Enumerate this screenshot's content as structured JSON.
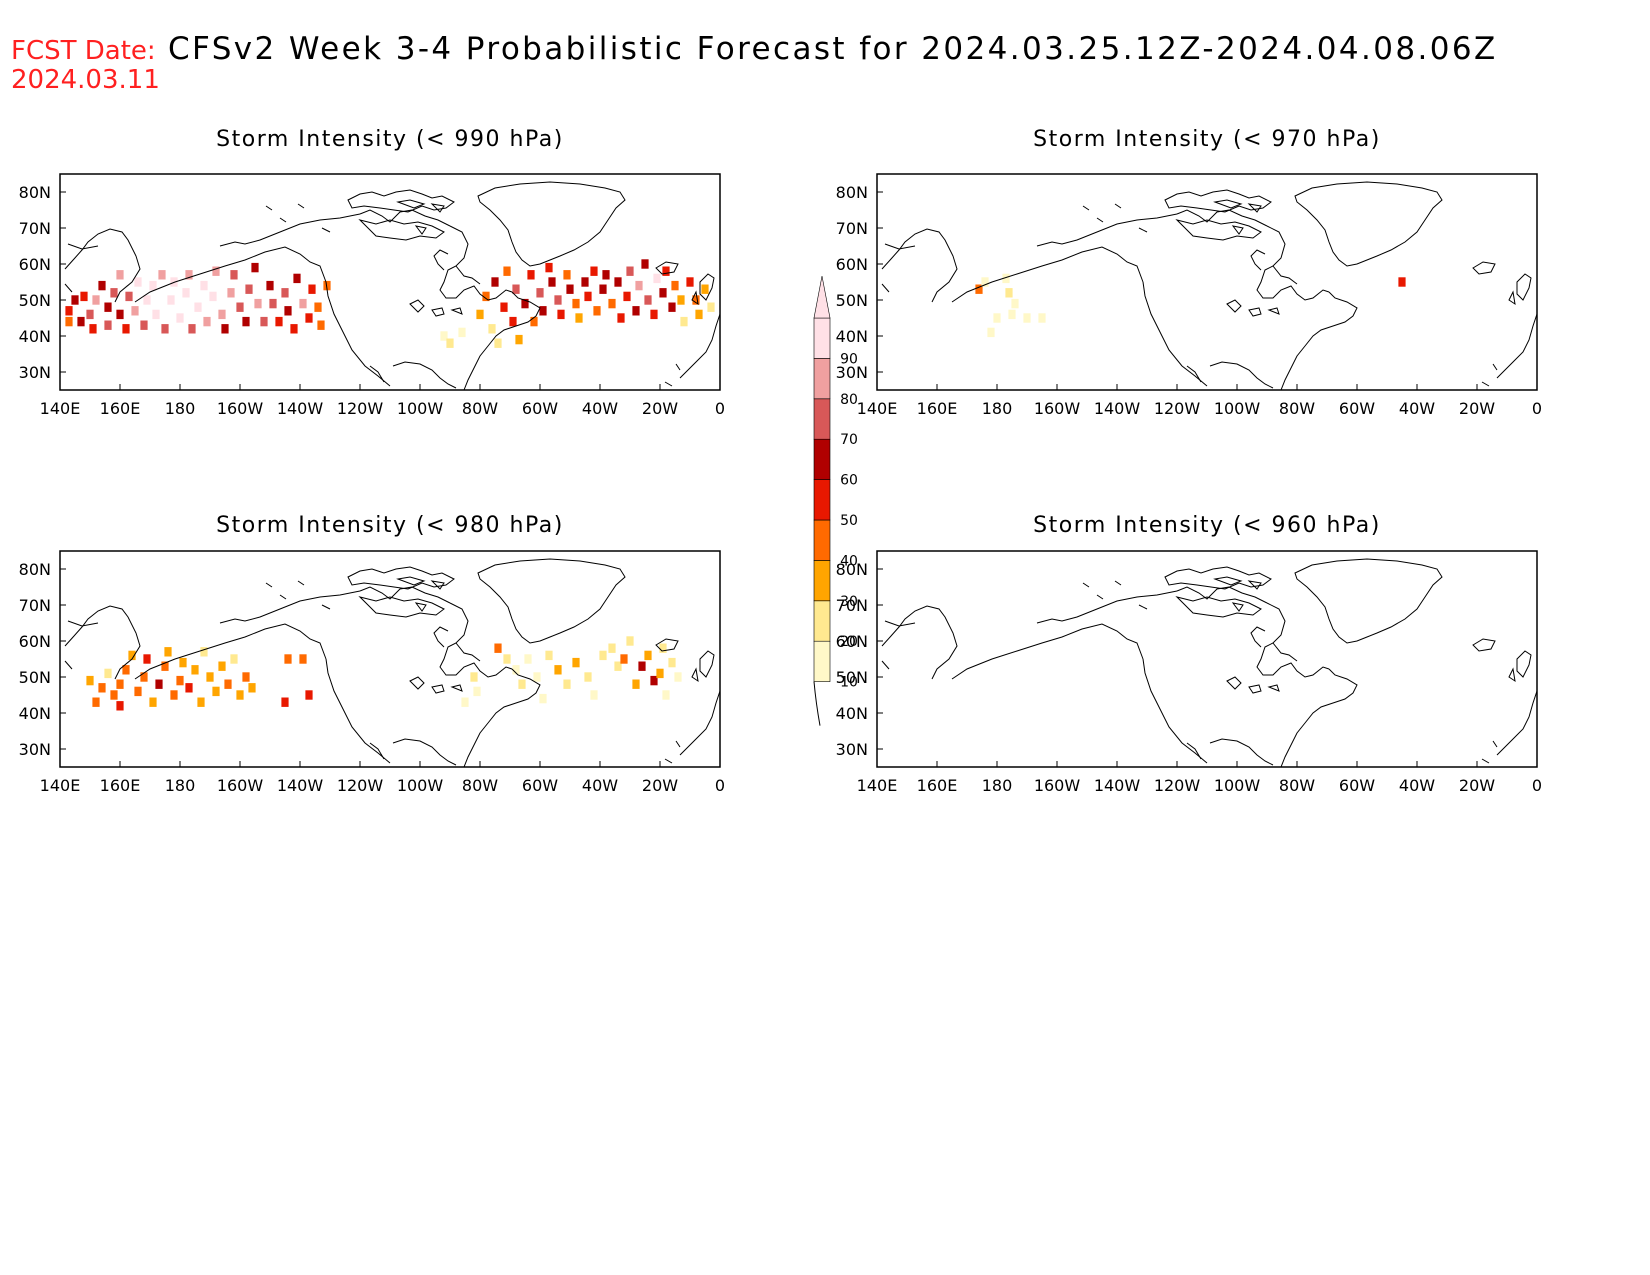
{
  "header": {
    "fcst_label": "FCST Date:",
    "fcst_date": "2024.03.11",
    "title": "CFSv2 Week 3-4 Probabilistic Forecast for 2024.03.25.12Z-2024.04.08.06Z",
    "label_color": "#ff2020",
    "title_color": "#000000"
  },
  "panels": [
    {
      "id": "p990",
      "title": "Storm Intensity (< 990 hPa)"
    },
    {
      "id": "p970",
      "title": "Storm Intensity (< 970 hPa)"
    },
    {
      "id": "p980",
      "title": "Storm Intensity (< 980 hPa)"
    },
    {
      "id": "p960",
      "title": "Storm Intensity (< 960 hPa)"
    }
  ],
  "axes": {
    "lon_ticks": [
      "140E",
      "160E",
      "180",
      "160W",
      "140W",
      "120W",
      "100W",
      "80W",
      "60W",
      "40W",
      "20W",
      "0"
    ],
    "lat_ticks": [
      "80N",
      "70N",
      "60N",
      "50N",
      "40N",
      "30N"
    ],
    "lon_range_deg_east": [
      140,
      360
    ],
    "lat_range": [
      25,
      85
    ]
  },
  "colorbar": {
    "levels": [
      "10",
      "20",
      "30",
      "40",
      "50",
      "60",
      "70",
      "80",
      "90"
    ],
    "colors": [
      "#fff8c8",
      "#ffe990",
      "#ffa500",
      "#ff6a00",
      "#e81800",
      "#b00000",
      "#d85858",
      "#f0a0a0",
      "#ffe0e6"
    ]
  },
  "chart_data": [
    {
      "type": "heatmap",
      "title": "Storm Intensity (< 990 hPa)",
      "units": "probability (%)",
      "xlim": [
        140,
        360
      ],
      "ylim": [
        25,
        85
      ],
      "cells": [
        [
          143,
          44,
          40
        ],
        [
          143,
          47,
          50
        ],
        [
          145,
          50,
          60
        ],
        [
          147,
          44,
          60
        ],
        [
          148,
          51,
          55
        ],
        [
          150,
          46,
          70
        ],
        [
          152,
          50,
          80
        ],
        [
          151,
          42,
          55
        ],
        [
          154,
          54,
          60
        ],
        [
          156,
          48,
          60
        ],
        [
          156,
          43,
          70
        ],
        [
          158,
          52,
          70
        ],
        [
          160,
          46,
          60
        ],
        [
          160,
          57,
          80
        ],
        [
          162,
          42,
          55
        ],
        [
          163,
          51,
          70
        ],
        [
          165,
          47,
          80
        ],
        [
          166,
          55,
          90
        ],
        [
          168,
          43,
          70
        ],
        [
          169,
          50,
          90
        ],
        [
          171,
          54,
          90
        ],
        [
          172,
          46,
          90
        ],
        [
          174,
          57,
          80
        ],
        [
          175,
          42,
          70
        ],
        [
          177,
          50,
          90
        ],
        [
          178,
          55,
          90
        ],
        [
          180,
          45,
          90
        ],
        [
          182,
          52,
          90
        ],
        [
          183,
          57,
          80
        ],
        [
          184,
          42,
          70
        ],
        [
          186,
          48,
          90
        ],
        [
          188,
          54,
          90
        ],
        [
          189,
          44,
          80
        ],
        [
          191,
          51,
          90
        ],
        [
          192,
          58,
          80
        ],
        [
          194,
          46,
          80
        ],
        [
          195,
          42,
          60
        ],
        [
          197,
          52,
          80
        ],
        [
          198,
          57,
          70
        ],
        [
          200,
          48,
          70
        ],
        [
          202,
          44,
          60
        ],
        [
          203,
          53,
          70
        ],
        [
          205,
          59,
          60
        ],
        [
          206,
          49,
          80
        ],
        [
          208,
          44,
          70
        ],
        [
          210,
          54,
          60
        ],
        [
          211,
          49,
          70
        ],
        [
          213,
          44,
          50
        ],
        [
          215,
          52,
          70
        ],
        [
          216,
          47,
          60
        ],
        [
          218,
          42,
          55
        ],
        [
          219,
          56,
          60
        ],
        [
          221,
          49,
          80
        ],
        [
          223,
          45,
          50
        ],
        [
          224,
          53,
          55
        ],
        [
          226,
          48,
          45
        ],
        [
          227,
          43,
          40
        ],
        [
          229,
          54,
          40
        ],
        [
          268,
          40,
          10
        ],
        [
          270,
          38,
          20
        ],
        [
          274,
          41,
          15
        ],
        [
          280,
          46,
          30
        ],
        [
          282,
          51,
          45
        ],
        [
          284,
          42,
          25
        ],
        [
          285,
          55,
          60
        ],
        [
          286,
          38,
          25
        ],
        [
          288,
          48,
          55
        ],
        [
          289,
          58,
          45
        ],
        [
          291,
          44,
          50
        ],
        [
          292,
          53,
          70
        ],
        [
          293,
          39,
          35
        ],
        [
          295,
          49,
          60
        ],
        [
          297,
          57,
          55
        ],
        [
          298,
          44,
          45
        ],
        [
          300,
          52,
          70
        ],
        [
          301,
          47,
          60
        ],
        [
          303,
          59,
          50
        ],
        [
          304,
          55,
          60
        ],
        [
          306,
          50,
          70
        ],
        [
          307,
          46,
          55
        ],
        [
          309,
          57,
          45
        ],
        [
          310,
          53,
          65
        ],
        [
          312,
          49,
          40
        ],
        [
          313,
          45,
          30
        ],
        [
          315,
          55,
          60
        ],
        [
          316,
          51,
          50
        ],
        [
          318,
          58,
          55
        ],
        [
          319,
          47,
          45
        ],
        [
          321,
          53,
          60
        ],
        [
          322,
          57,
          65
        ],
        [
          324,
          49,
          40
        ],
        [
          326,
          55,
          60
        ],
        [
          327,
          45,
          50
        ],
        [
          329,
          51,
          55
        ],
        [
          330,
          58,
          70
        ],
        [
          332,
          47,
          60
        ],
        [
          333,
          54,
          80
        ],
        [
          335,
          60,
          60
        ],
        [
          336,
          50,
          70
        ],
        [
          338,
          46,
          50
        ],
        [
          339,
          56,
          90
        ],
        [
          341,
          52,
          65
        ],
        [
          342,
          58,
          55
        ],
        [
          344,
          48,
          60
        ],
        [
          345,
          54,
          40
        ],
        [
          347,
          50,
          35
        ],
        [
          348,
          44,
          25
        ],
        [
          350,
          55,
          55
        ],
        [
          352,
          50,
          45
        ],
        [
          353,
          46,
          30
        ],
        [
          355,
          53,
          35
        ],
        [
          357,
          48,
          20
        ]
      ]
    },
    {
      "type": "heatmap",
      "title": "Storm Intensity (< 970 hPa)",
      "units": "probability (%)",
      "xlim": [
        140,
        360
      ],
      "ylim": [
        25,
        85
      ],
      "cells": [
        [
          174,
          53,
          40
        ],
        [
          176,
          55,
          15
        ],
        [
          183,
          56,
          15
        ],
        [
          184,
          52,
          20
        ],
        [
          186,
          49,
          15
        ],
        [
          185,
          46,
          10
        ],
        [
          180,
          45,
          10
        ],
        [
          178,
          41,
          10
        ],
        [
          190,
          45,
          10
        ],
        [
          195,
          45,
          10
        ],
        [
          315,
          55,
          50
        ]
      ]
    },
    {
      "type": "heatmap",
      "title": "Storm Intensity (< 980 hPa)",
      "units": "probability (%)",
      "xlim": [
        140,
        360
      ],
      "ylim": [
        25,
        85
      ],
      "cells": [
        [
          150,
          49,
          30
        ],
        [
          152,
          43,
          40
        ],
        [
          154,
          47,
          40
        ],
        [
          156,
          51,
          20
        ],
        [
          158,
          45,
          40
        ],
        [
          160,
          42,
          50
        ],
        [
          160,
          48,
          40
        ],
        [
          162,
          52,
          40
        ],
        [
          164,
          56,
          30
        ],
        [
          166,
          46,
          40
        ],
        [
          168,
          50,
          40
        ],
        [
          169,
          55,
          50
        ],
        [
          171,
          43,
          30
        ],
        [
          173,
          48,
          60
        ],
        [
          175,
          53,
          40
        ],
        [
          176,
          57,
          30
        ],
        [
          178,
          45,
          40
        ],
        [
          180,
          49,
          40
        ],
        [
          181,
          54,
          30
        ],
        [
          183,
          47,
          50
        ],
        [
          185,
          52,
          30
        ],
        [
          187,
          43,
          30
        ],
        [
          188,
          57,
          20
        ],
        [
          190,
          50,
          30
        ],
        [
          192,
          46,
          30
        ],
        [
          194,
          53,
          30
        ],
        [
          196,
          48,
          40
        ],
        [
          198,
          55,
          20
        ],
        [
          200,
          45,
          30
        ],
        [
          202,
          50,
          40
        ],
        [
          204,
          47,
          30
        ],
        [
          215,
          43,
          50
        ],
        [
          216,
          55,
          40
        ],
        [
          221,
          55,
          40
        ],
        [
          223,
          45,
          50
        ],
        [
          275,
          43,
          10
        ],
        [
          278,
          50,
          20
        ],
        [
          279,
          46,
          10
        ],
        [
          286,
          58,
          40
        ],
        [
          289,
          55,
          20
        ],
        [
          292,
          52,
          10
        ],
        [
          294,
          48,
          20
        ],
        [
          296,
          55,
          10
        ],
        [
          299,
          50,
          10
        ],
        [
          301,
          44,
          10
        ],
        [
          303,
          56,
          20
        ],
        [
          306,
          52,
          30
        ],
        [
          309,
          48,
          20
        ],
        [
          312,
          54,
          30
        ],
        [
          316,
          50,
          20
        ],
        [
          318,
          45,
          10
        ],
        [
          321,
          56,
          20
        ],
        [
          324,
          58,
          20
        ],
        [
          326,
          53,
          20
        ],
        [
          328,
          55,
          40
        ],
        [
          330,
          60,
          20
        ],
        [
          332,
          48,
          30
        ],
        [
          334,
          53,
          60
        ],
        [
          336,
          56,
          30
        ],
        [
          338,
          49,
          60
        ],
        [
          340,
          51,
          30
        ],
        [
          341,
          58,
          20
        ],
        [
          342,
          45,
          10
        ],
        [
          344,
          54,
          20
        ],
        [
          346,
          50,
          10
        ]
      ]
    },
    {
      "type": "heatmap",
      "title": "Storm Intensity (< 960 hPa)",
      "units": "probability (%)",
      "xlim": [
        140,
        360
      ],
      "ylim": [
        25,
        85
      ],
      "cells": []
    }
  ]
}
